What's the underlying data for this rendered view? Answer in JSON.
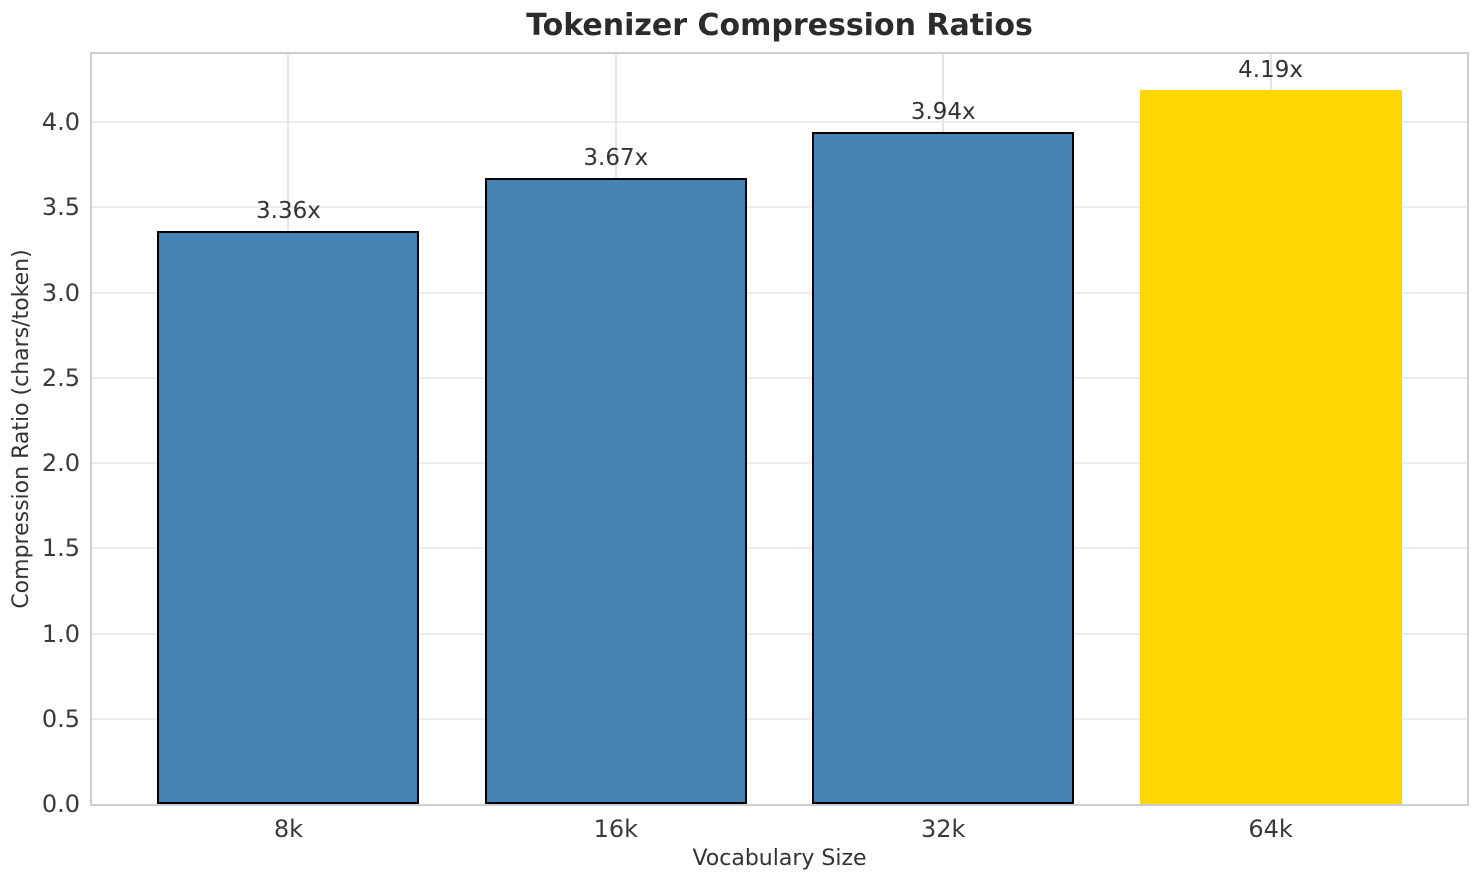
{
  "chart_data": {
    "type": "bar",
    "title": "Tokenizer Compression Ratios",
    "xlabel": "Vocabulary Size",
    "ylabel": "Compression Ratio (chars/token)",
    "categories": [
      "8k",
      "16k",
      "32k",
      "64k"
    ],
    "values": [
      3.36,
      3.67,
      3.94,
      4.19
    ],
    "bar_labels": [
      "3.36x",
      "3.67x",
      "3.94x",
      "4.19x"
    ],
    "bar_colors": [
      "#4682B4",
      "#4682B4",
      "#4682B4",
      "#FFD700"
    ],
    "bar_edge_colors": [
      "#000000",
      "#000000",
      "#000000",
      "none"
    ],
    "ylim": [
      0,
      4.4
    ],
    "yticks": [
      0,
      0.5,
      1,
      1.5,
      2,
      2.5,
      3,
      3.5,
      4
    ],
    "ytick_labels": [
      "0.0",
      "0.5",
      "1.0",
      "1.5",
      "2.0",
      "2.5",
      "3.0",
      "3.5",
      "4.0"
    ],
    "grid": true,
    "legend_position": "none",
    "colors": {
      "bar_default": "#4682B4",
      "bar_highlight": "#FFD700",
      "bar_edge": "#000000",
      "grid": "#ececec",
      "spine": "#cfcfcf",
      "text": "#333333"
    }
  }
}
